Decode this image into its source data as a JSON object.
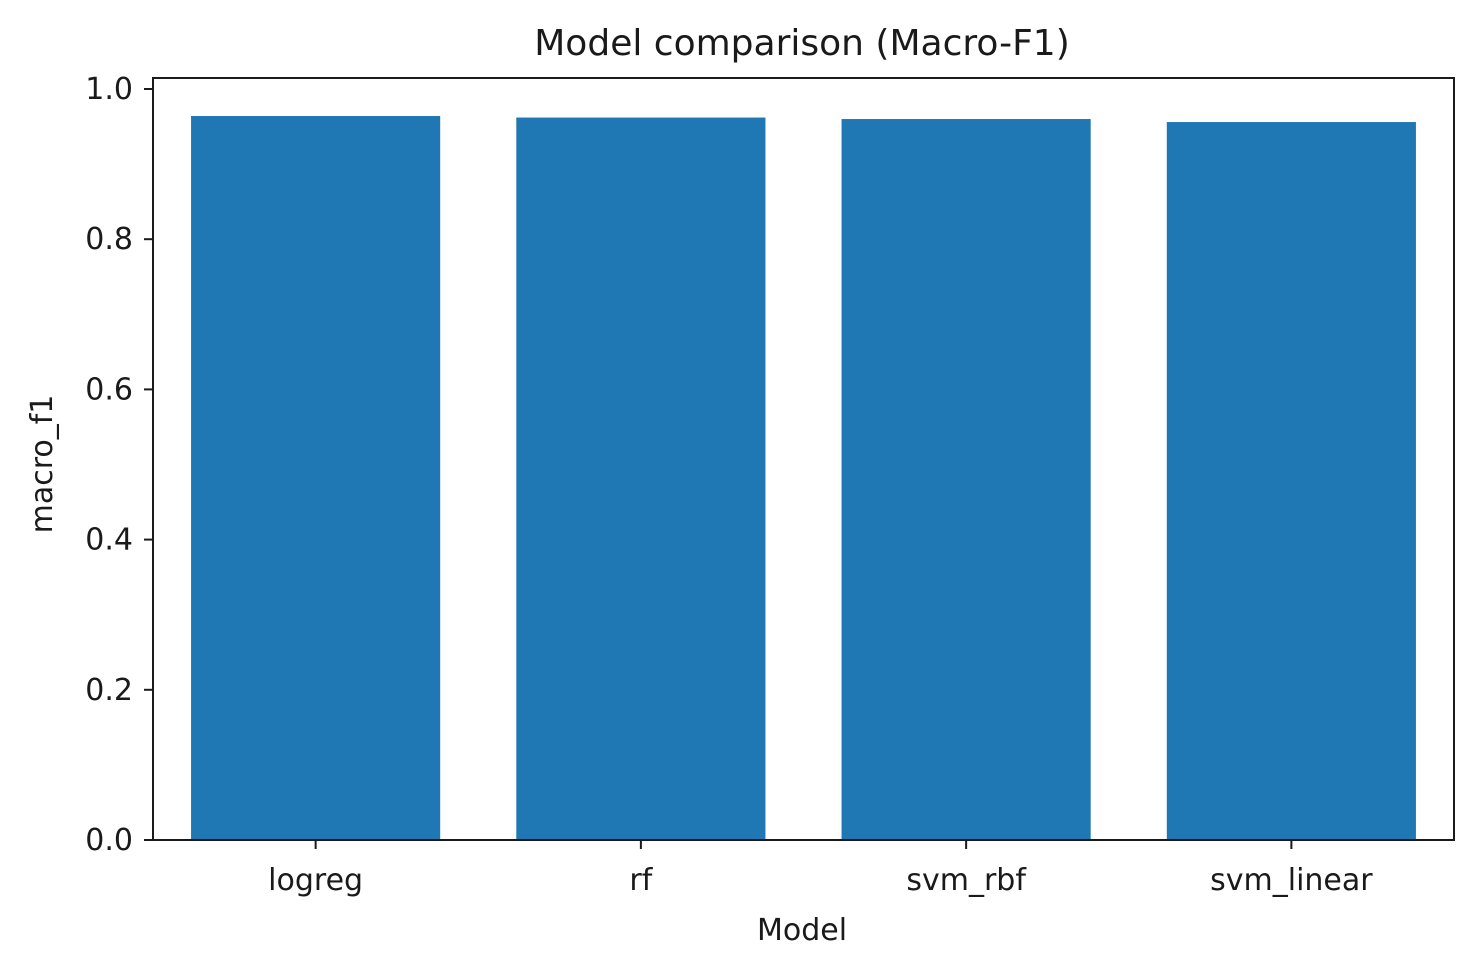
{
  "chart_data": {
    "type": "bar",
    "title": "Model comparison (Macro-F1)",
    "xlabel": "Model",
    "ylabel": "macro_f1",
    "categories": [
      "logreg",
      "rf",
      "svm_rbf",
      "svm_linear"
    ],
    "values": [
      0.964,
      0.962,
      0.96,
      0.956
    ],
    "ylim": [
      0.0,
      1.0
    ],
    "yticks": [
      "0.0",
      "0.2",
      "0.4",
      "0.6",
      "0.8",
      "1.0"
    ],
    "ytick_values": [
      0.0,
      0.2,
      0.4,
      0.6,
      0.8,
      1.0
    ],
    "grid": false,
    "legend": "none",
    "colors": {
      "bar": "#1f77b4",
      "axis": "#1a1a1a",
      "background": "#ffffff"
    }
  }
}
